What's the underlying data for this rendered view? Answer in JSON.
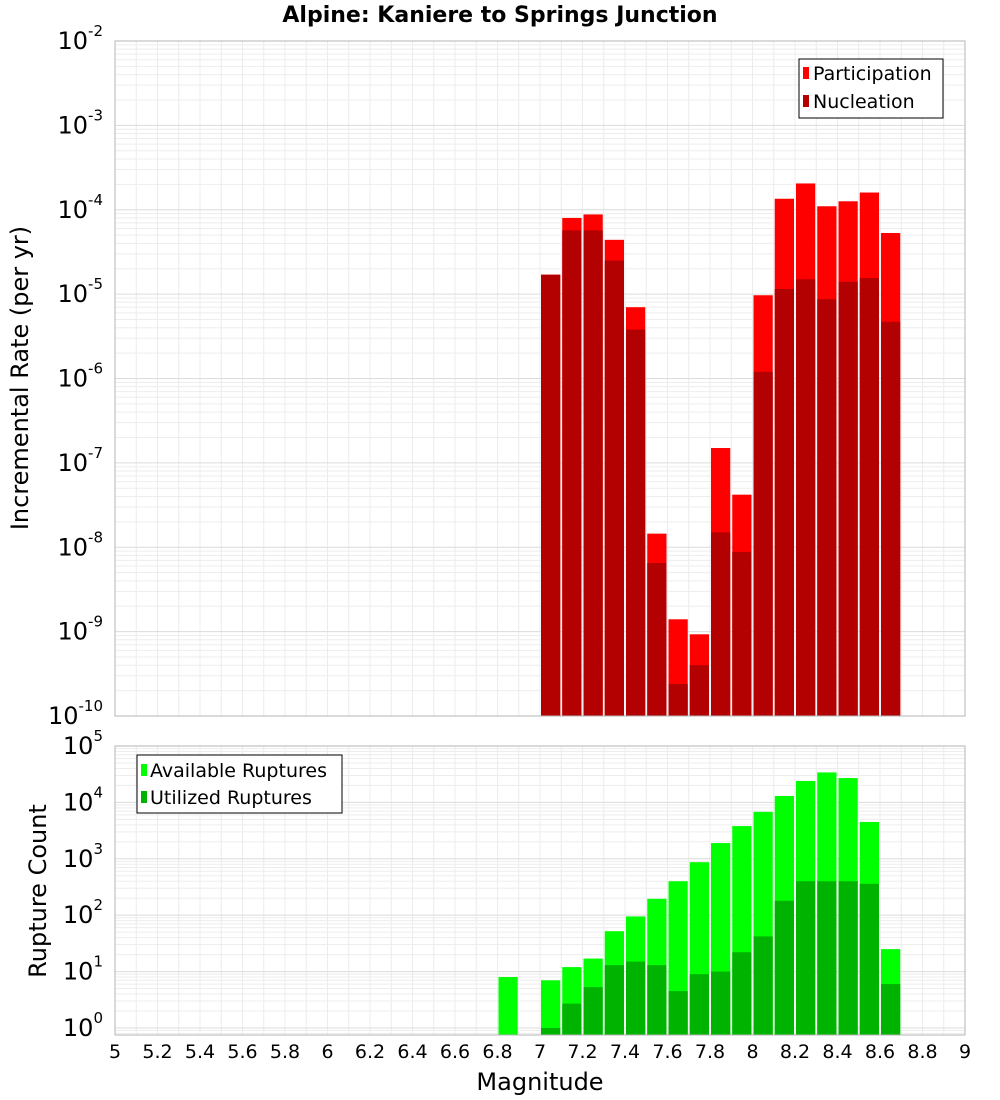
{
  "chart_data": [
    {
      "id": "top",
      "type": "bar",
      "scale": "log",
      "title": "Alpine: Kaniere to Springs Junction",
      "ylabel": "Incremental Rate (per yr)",
      "ylim": [
        1e-10,
        0.01
      ],
      "yticks": [
        {
          "base": "10",
          "exp": "-10",
          "v": 1e-10
        },
        {
          "base": "10",
          "exp": "-9",
          "v": 1e-09
        },
        {
          "base": "10",
          "exp": "-8",
          "v": 1e-08
        },
        {
          "base": "10",
          "exp": "-7",
          "v": 1e-07
        },
        {
          "base": "10",
          "exp": "-6",
          "v": 1e-06
        },
        {
          "base": "10",
          "exp": "-5",
          "v": 1e-05
        },
        {
          "base": "10",
          "exp": "-4",
          "v": 0.0001
        },
        {
          "base": "10",
          "exp": "-3",
          "v": 0.001
        },
        {
          "base": "10",
          "exp": "-2",
          "v": 0.01
        }
      ],
      "legend_position": "top-right",
      "x": [
        7.05,
        7.15,
        7.25,
        7.35,
        7.45,
        7.55,
        7.65,
        7.75,
        7.85,
        7.95,
        8.05,
        8.15,
        8.25,
        8.35,
        8.45,
        8.55,
        8.65
      ],
      "series": [
        {
          "name": "Participation",
          "color": "#ff0000",
          "values": [
            1.7e-05,
            8e-05,
            8.8e-05,
            4.4e-05,
            7e-06,
            1.45e-08,
            1.4e-09,
            9.3e-10,
            1.5e-07,
            4.2e-08,
            9.7e-06,
            0.000135,
            0.000205,
            0.00011,
            0.000126,
            0.00016,
            5.3e-05
          ]
        },
        {
          "name": "Nucleation",
          "color": "#b30000",
          "values": [
            1.7e-05,
            5.7e-05,
            5.7e-05,
            2.5e-05,
            3.8e-06,
            6.5e-09,
            2.4e-10,
            4e-10,
            1.5e-08,
            8.8e-09,
            1.2e-06,
            1.15e-05,
            1.5e-05,
            8.7e-06,
            1.4e-05,
            1.55e-05,
            4.7e-06
          ]
        }
      ]
    },
    {
      "id": "bottom",
      "type": "bar",
      "scale": "log",
      "xlabel": "Magnitude",
      "ylabel": "Rupture Count",
      "ylim": [
        0.75,
        100000
      ],
      "yticks": [
        {
          "base": "10",
          "exp": "0",
          "v": 1
        },
        {
          "base": "10",
          "exp": "1",
          "v": 10
        },
        {
          "base": "10",
          "exp": "2",
          "v": 100
        },
        {
          "base": "10",
          "exp": "3",
          "v": 1000
        },
        {
          "base": "10",
          "exp": "4",
          "v": 10000
        },
        {
          "base": "10",
          "exp": "5",
          "v": 100000
        }
      ],
      "legend_position": "top-left",
      "x": [
        6.85,
        7.05,
        7.15,
        7.25,
        7.35,
        7.45,
        7.55,
        7.65,
        7.75,
        7.85,
        7.95,
        8.05,
        8.15,
        8.25,
        8.35,
        8.45,
        8.55,
        8.65
      ],
      "series": [
        {
          "name": "Available Ruptures",
          "color": "#00ff00",
          "values": [
            8,
            7,
            12,
            17,
            52,
            95,
            195,
            400,
            870,
            1900,
            3800,
            6800,
            13000,
            24000,
            34000,
            27000,
            4500,
            25
          ]
        },
        {
          "name": "Utilized Ruptures",
          "color": "#00b300",
          "values": [
            0,
            1,
            2.7,
            5.3,
            13,
            15,
            13,
            4.5,
            9,
            10,
            22,
            42,
            180,
            400,
            400,
            400,
            360,
            6
          ]
        }
      ],
      "xticks": [
        "5",
        "5.2",
        "5.4",
        "5.6",
        "5.8",
        "6",
        "6.2",
        "6.4",
        "6.6",
        "6.8",
        "7",
        "7.2",
        "7.4",
        "7.6",
        "7.8",
        "8",
        "8.2",
        "8.4",
        "8.6",
        "8.8",
        "9"
      ],
      "xlim": [
        5,
        9
      ]
    }
  ]
}
